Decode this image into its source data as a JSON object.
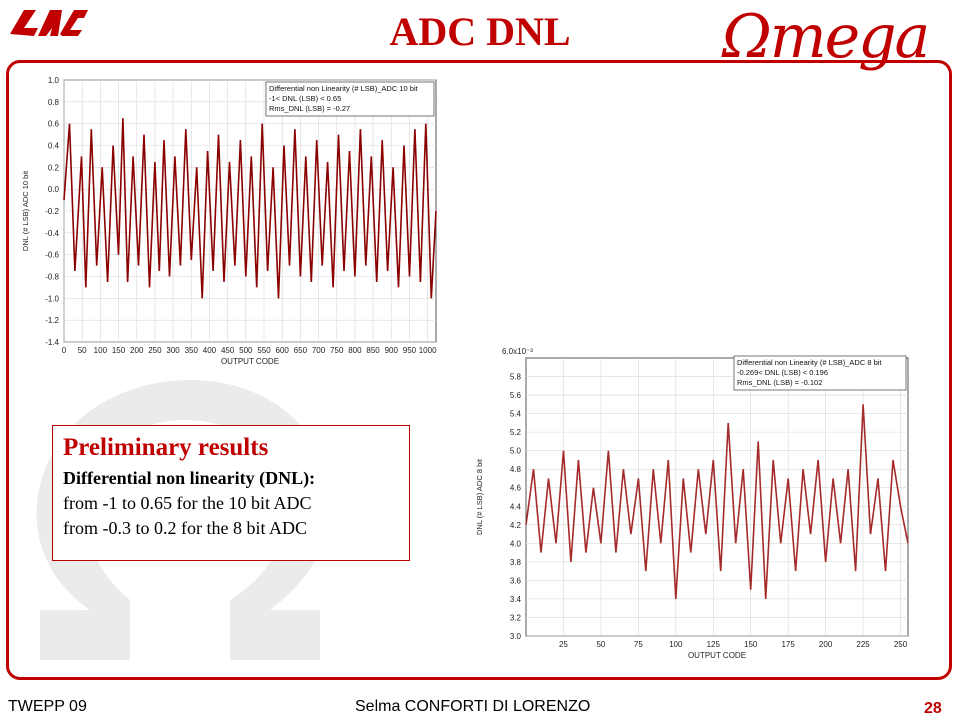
{
  "title": "ADC DNL",
  "logos": {
    "left_mark": "LAL",
    "right_mark": "Omega"
  },
  "colors": {
    "accent": "#c00000",
    "trace_10bit": "#8b0000",
    "trace_8bit": "#a52a2a"
  },
  "results": {
    "title": "Preliminary results",
    "subtitle": "Differential non linearity (DNL):",
    "line1": "from -1 to 0.65 for the 10 bit ADC",
    "line2": "from -0.3 to 0.2 for the 8 bit ADC"
  },
  "footer": {
    "left": "TWEPP 09",
    "center": "Selma CONFORTI DI LORENZO",
    "page": "28"
  },
  "chart_data": [
    {
      "type": "line",
      "ylabel": "DNL (# LSB)  ADC 10 bit",
      "xlabel": "OUTPUT CODE",
      "xlim": [
        0,
        1023
      ],
      "ylim": [
        -1.4,
        1.0
      ],
      "x_ticks": [
        0,
        50,
        100,
        150,
        200,
        250,
        300,
        350,
        400,
        450,
        500,
        550,
        600,
        650,
        700,
        750,
        800,
        850,
        900,
        950,
        1000
      ],
      "x_tick_labels": [
        "0",
        "50",
        "100",
        "150",
        "200",
        "250",
        "300",
        "350",
        "400",
        "450",
        "500",
        "550",
        "600",
        "650",
        "700",
        "750",
        "800",
        "850",
        "900",
        "950",
        "1000"
      ],
      "y_ticks": [
        1.0,
        0.8,
        0.6,
        0.4,
        0.2,
        0.0,
        -0.2,
        -0.4,
        -0.6,
        -0.8,
        -1.0,
        -1.2,
        -1.4
      ],
      "y_tick_labels": [
        "1.0",
        "0.8",
        "0.6",
        "0.4",
        "0.2",
        "0.0",
        "-0.2",
        "-0.4",
        "-0.6",
        "-0.8",
        "-1.0",
        "-1.2",
        "-1.4"
      ],
      "legend": [
        "Differential non Linearity (# LSB)_ADC 10 bit",
        "-1< DNL (LSB) < 0.65",
        "Rms_DNL (LSB) = -0.27"
      ],
      "legend_position": "top-right",
      "grid": true,
      "series": [
        {
          "color": "#8b0000",
          "x": [
            0,
            15,
            30,
            48,
            60,
            75,
            90,
            105,
            120,
            135,
            150,
            162,
            175,
            190,
            205,
            220,
            235,
            250,
            262,
            275,
            290,
            305,
            320,
            335,
            350,
            365,
            380,
            395,
            410,
            425,
            440,
            455,
            470,
            485,
            500,
            515,
            530,
            545,
            560,
            575,
            590,
            605,
            620,
            635,
            650,
            665,
            680,
            695,
            710,
            725,
            740,
            755,
            770,
            785,
            800,
            815,
            830,
            845,
            860,
            875,
            890,
            905,
            920,
            935,
            950,
            965,
            980,
            995,
            1010,
            1023
          ],
          "y": [
            -0.1,
            0.6,
            -0.75,
            0.3,
            -0.9,
            0.55,
            -0.7,
            0.2,
            -0.85,
            0.4,
            -0.6,
            0.65,
            -0.85,
            0.3,
            -0.7,
            0.5,
            -0.9,
            0.25,
            -0.75,
            0.45,
            -0.8,
            0.3,
            -0.7,
            0.55,
            -0.65,
            0.2,
            -1.0,
            0.35,
            -0.75,
            0.5,
            -0.85,
            0.25,
            -0.7,
            0.45,
            -0.8,
            0.3,
            -0.9,
            0.6,
            -0.75,
            0.2,
            -1.0,
            0.4,
            -0.7,
            0.55,
            -0.8,
            0.3,
            -0.85,
            0.45,
            -0.7,
            0.25,
            -0.9,
            0.5,
            -0.75,
            0.35,
            -0.8,
            0.55,
            -0.7,
            0.3,
            -0.85,
            0.45,
            -0.75,
            0.2,
            -0.9,
            0.4,
            -0.8,
            0.55,
            -0.85,
            0.6,
            -1.0,
            -0.2
          ]
        }
      ]
    },
    {
      "type": "line",
      "ylabel": "DNL (# LSB)  ADC 8 bit",
      "xlabel": "OUTPUT CODE",
      "xlim": [
        0,
        255
      ],
      "ylim": [
        3.0,
        6.0
      ],
      "y_scale_label": "6.0x10⁻³",
      "x_ticks": [
        25,
        50,
        75,
        100,
        125,
        150,
        175,
        200,
        225,
        250
      ],
      "x_tick_labels": [
        "25",
        "50",
        "75",
        "100",
        "125",
        "150",
        "175",
        "200",
        "225",
        "250"
      ],
      "y_ticks": [
        5.8,
        5.6,
        5.4,
        5.2,
        5.0,
        4.8,
        4.6,
        4.4,
        4.2,
        4.0,
        3.8,
        3.6,
        3.4,
        3.2,
        3.0
      ],
      "y_tick_labels": [
        "5.8",
        "5.6",
        "5.4",
        "5.2",
        "5.0",
        "4.8",
        "4.6",
        "4.4",
        "4.2",
        "4.0",
        "3.8",
        "3.6",
        "3.4",
        "3.2",
        "3.0"
      ],
      "legend": [
        "Differential non Linearity (# LSB)_ADC 8 bit",
        "-0.269< DNL (LSB) < 0.196",
        "Rms_DNL (LSB) = -0.102"
      ],
      "legend_position": "top-right",
      "grid": true,
      "series": [
        {
          "color": "#a52a2a",
          "x": [
            0,
            5,
            10,
            15,
            20,
            25,
            30,
            35,
            40,
            45,
            50,
            55,
            60,
            65,
            70,
            75,
            80,
            85,
            90,
            95,
            100,
            105,
            110,
            115,
            120,
            125,
            130,
            135,
            140,
            145,
            150,
            155,
            160,
            165,
            170,
            175,
            180,
            185,
            190,
            195,
            200,
            205,
            210,
            215,
            220,
            225,
            230,
            235,
            240,
            245,
            250,
            255
          ],
          "y": [
            4.2,
            4.8,
            3.9,
            4.7,
            4.0,
            5.0,
            3.8,
            4.9,
            3.9,
            4.6,
            4.0,
            5.0,
            3.9,
            4.8,
            4.1,
            4.7,
            3.7,
            4.8,
            4.0,
            4.9,
            3.4,
            4.7,
            3.9,
            4.8,
            4.1,
            4.9,
            3.7,
            5.3,
            4.0,
            4.8,
            3.5,
            5.1,
            3.4,
            4.9,
            4.0,
            4.7,
            3.7,
            4.8,
            4.1,
            4.9,
            3.8,
            4.7,
            4.0,
            4.8,
            3.7,
            5.5,
            4.1,
            4.7,
            3.7,
            4.9,
            4.4,
            4.0
          ]
        }
      ]
    }
  ]
}
